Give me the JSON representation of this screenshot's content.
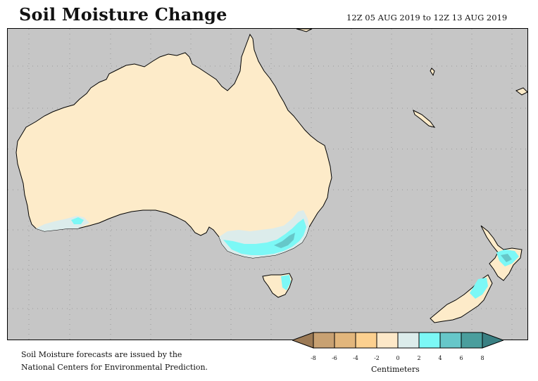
{
  "title": "Soil Moisture Change",
  "date_range": "12Z 05 AUG 2019 to 12Z 13 AUG 2019",
  "note_line1": "Soil Moisture forecasts are issued by the",
  "note_line2": "National Centers for Environmental Prediction.",
  "legend": {
    "units": "Centimeters",
    "ticks": [
      "-8",
      "-6",
      "-4",
      "-2",
      "0",
      "2",
      "4",
      "6",
      "8"
    ],
    "colors": [
      "#9c7a55",
      "#c8a172",
      "#e2b67c",
      "#fcd08f",
      "#fde8c8",
      "#dceceb",
      "#7cf8f6",
      "#66c7c9",
      "#4a9e9d",
      "#3a8083"
    ]
  },
  "colors": {
    "ocean": "#c6c6c6",
    "land_dry": "#fdebc9",
    "land_light": "#dceceb",
    "land_wet": "#7cf8f6",
    "land_wetter": "#66c7c9"
  }
}
